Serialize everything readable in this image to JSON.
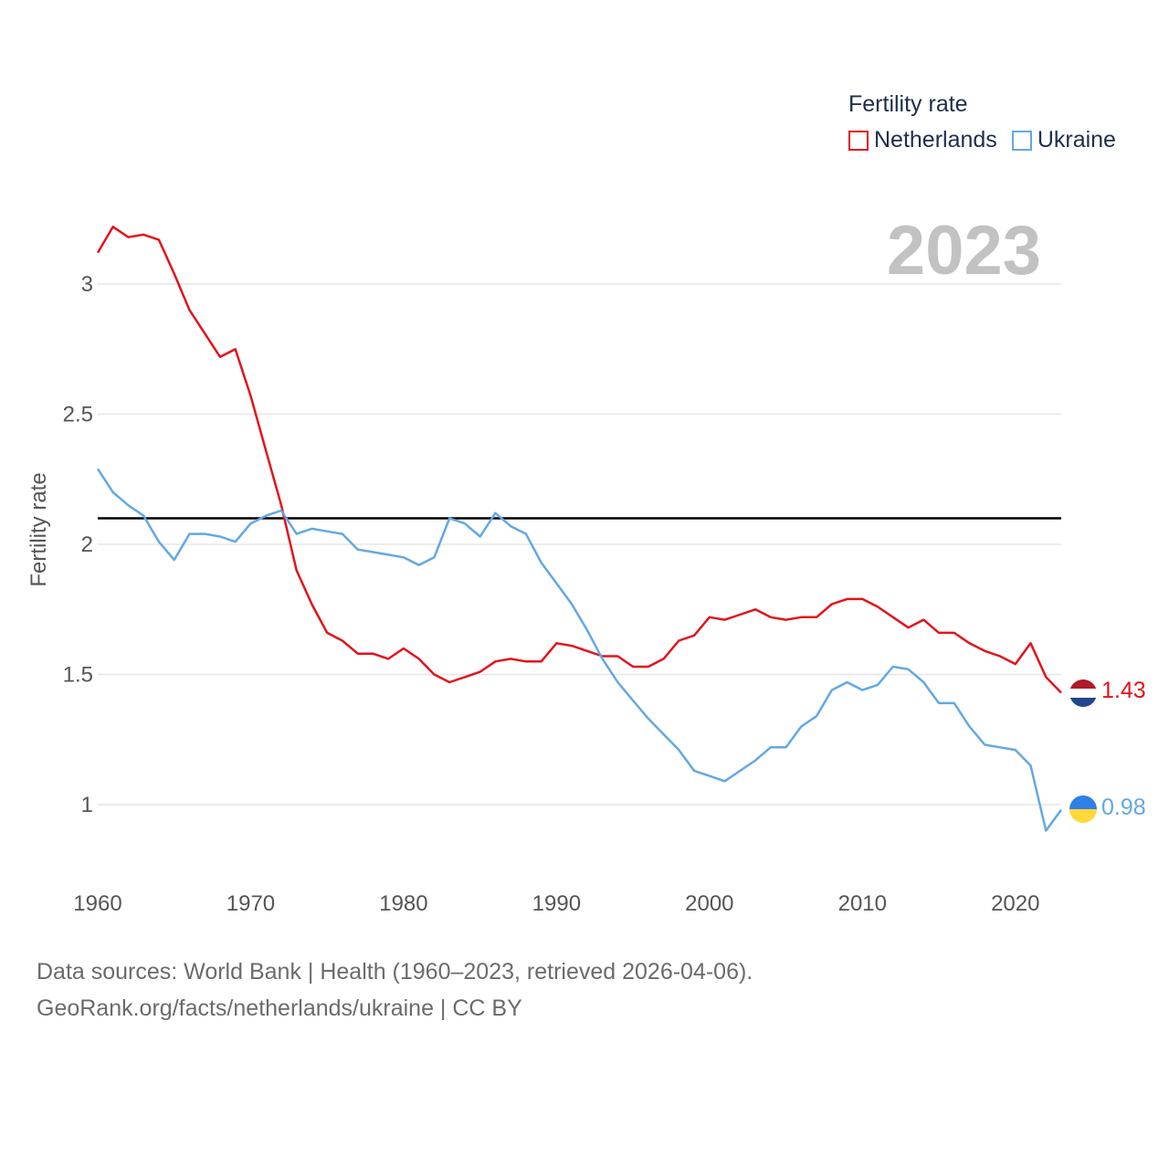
{
  "legend": {
    "title": "Fertility rate",
    "items": [
      {
        "label": "Netherlands",
        "color": "#e3131b"
      },
      {
        "label": "Ukraine",
        "color": "#62a8e5"
      }
    ]
  },
  "footer": {
    "line1": "Data sources: World Bank | Health (1960–2023, retrieved 2026-04-06).",
    "line2": "GeoRank.org/facts/netherlands/ukraine | CC BY"
  },
  "chart_data": {
    "type": "line",
    "year_label": "2023",
    "ylabel": "Fertility rate",
    "xlim": [
      1960,
      2023
    ],
    "ylim": [
      0.8,
      3.3
    ],
    "x_ticks": [
      1960,
      1970,
      1980,
      1990,
      2000,
      2010,
      2020
    ],
    "y_ticks": [
      1,
      1.5,
      2,
      2.5,
      3
    ],
    "y_tick_labels": [
      "1",
      "1.5",
      "2",
      "2.5",
      "3"
    ],
    "grid": true,
    "reference_line": {
      "value": 2.1,
      "color": "#000000"
    },
    "x": [
      1960,
      1961,
      1962,
      1963,
      1964,
      1965,
      1966,
      1967,
      1968,
      1969,
      1970,
      1971,
      1972,
      1973,
      1974,
      1975,
      1976,
      1977,
      1978,
      1979,
      1980,
      1981,
      1982,
      1983,
      1984,
      1985,
      1986,
      1987,
      1988,
      1989,
      1990,
      1991,
      1992,
      1993,
      1994,
      1995,
      1996,
      1997,
      1998,
      1999,
      2000,
      2001,
      2002,
      2003,
      2004,
      2005,
      2006,
      2007,
      2008,
      2009,
      2010,
      2011,
      2012,
      2013,
      2014,
      2015,
      2016,
      2017,
      2018,
      2019,
      2020,
      2021,
      2022,
      2023
    ],
    "series": [
      {
        "name": "Netherlands",
        "color": "#e3131b",
        "end_label": "1.43",
        "values": [
          3.12,
          3.22,
          3.18,
          3.19,
          3.17,
          3.04,
          2.9,
          2.81,
          2.72,
          2.75,
          2.57,
          2.36,
          2.15,
          1.9,
          1.77,
          1.66,
          1.63,
          1.58,
          1.58,
          1.56,
          1.6,
          1.56,
          1.5,
          1.47,
          1.49,
          1.51,
          1.55,
          1.56,
          1.55,
          1.55,
          1.62,
          1.61,
          1.59,
          1.57,
          1.57,
          1.53,
          1.53,
          1.56,
          1.63,
          1.65,
          1.72,
          1.71,
          1.73,
          1.75,
          1.72,
          1.71,
          1.72,
          1.72,
          1.77,
          1.79,
          1.79,
          1.76,
          1.72,
          1.68,
          1.71,
          1.66,
          1.66,
          1.62,
          1.59,
          1.57,
          1.54,
          1.62,
          1.49,
          1.43
        ]
      },
      {
        "name": "Ukraine",
        "color": "#62a8e5",
        "end_label": "0.98",
        "values": [
          2.29,
          2.2,
          2.15,
          2.11,
          2.01,
          1.94,
          2.04,
          2.04,
          2.03,
          2.01,
          2.08,
          2.11,
          2.13,
          2.04,
          2.06,
          2.05,
          2.04,
          1.98,
          1.97,
          1.96,
          1.95,
          1.92,
          1.95,
          2.1,
          2.08,
          2.03,
          2.12,
          2.07,
          2.04,
          1.93,
          1.85,
          1.77,
          1.67,
          1.56,
          1.47,
          1.4,
          1.33,
          1.27,
          1.21,
          1.13,
          1.11,
          1.09,
          1.13,
          1.17,
          1.22,
          1.22,
          1.3,
          1.34,
          1.44,
          1.47,
          1.44,
          1.46,
          1.53,
          1.52,
          1.47,
          1.39,
          1.39,
          1.3,
          1.23,
          1.22,
          1.21,
          1.15,
          0.9,
          0.98
        ]
      }
    ]
  }
}
